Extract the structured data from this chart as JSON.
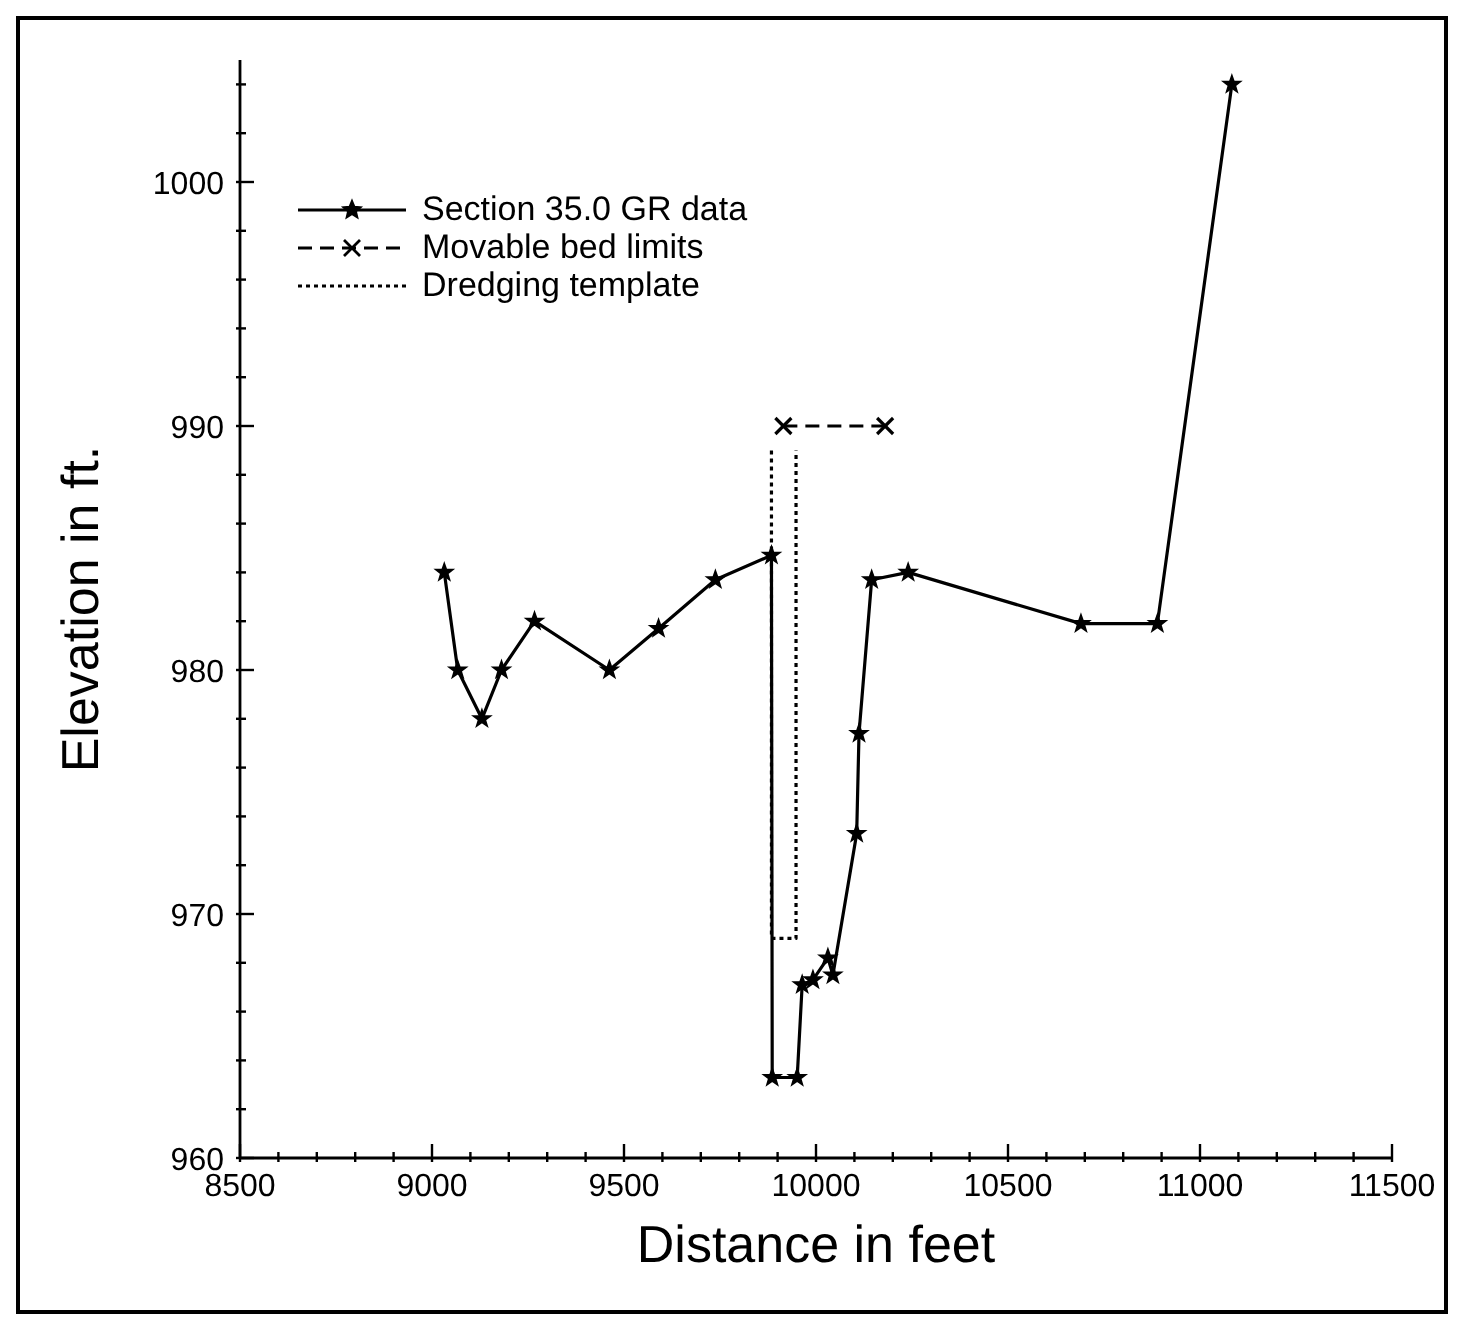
{
  "chart_data": {
    "type": "line",
    "xlabel": "Distance in feet",
    "ylabel": "Elevation in ft.",
    "xlim": [
      8500,
      11500
    ],
    "xticks": [
      8500,
      {
        "value": 8600,
        "label": null
      },
      {
        "value": 8700,
        "label": null
      },
      {
        "value": 8800,
        "label": null
      },
      {
        "value": 8900,
        "label": null
      },
      9000,
      {
        "value": 9100,
        "label": null
      },
      {
        "value": 9200,
        "label": null
      },
      {
        "value": 9300,
        "label": null
      },
      {
        "value": 9400,
        "label": null
      },
      9500,
      {
        "value": 9600,
        "label": null
      },
      {
        "value": 9700,
        "label": null
      },
      {
        "value": 9800,
        "label": null
      },
      {
        "value": 9900,
        "label": null
      },
      10000,
      {
        "value": 10100,
        "label": null
      },
      {
        "value": 10200,
        "label": null
      },
      {
        "value": 10300,
        "label": null
      },
      {
        "value": 10400,
        "label": null
      },
      10500,
      {
        "value": 10600,
        "label": null
      },
      {
        "value": 10700,
        "label": null
      },
      {
        "value": 10800,
        "label": null
      },
      {
        "value": 10900,
        "label": null
      },
      11000,
      {
        "value": 11100,
        "label": null
      },
      {
        "value": 11200,
        "label": null
      },
      {
        "value": 11300,
        "label": null
      },
      {
        "value": 11400,
        "label": null
      },
      11500
    ],
    "ylim": [
      960,
      1005
    ],
    "yticks": [
      960,
      {
        "value": 962,
        "label": null
      },
      {
        "value": 964,
        "label": null
      },
      {
        "value": 966,
        "label": null
      },
      {
        "value": 968,
        "label": null
      },
      970,
      {
        "value": 972,
        "label": null
      },
      {
        "value": 974,
        "label": null
      },
      {
        "value": 976,
        "label": null
      },
      {
        "value": 978,
        "label": null
      },
      980,
      {
        "value": 982,
        "label": null
      },
      {
        "value": 984,
        "label": null
      },
      {
        "value": 986,
        "label": null
      },
      {
        "value": 988,
        "label": null
      },
      990,
      {
        "value": 992,
        "label": null
      },
      {
        "value": 994,
        "label": null
      },
      {
        "value": 996,
        "label": null
      },
      {
        "value": 998,
        "label": null
      },
      1000,
      {
        "value": 1002,
        "label": null
      },
      {
        "value": 1004,
        "label": null
      }
    ],
    "legend": "top left",
    "series": [
      {
        "name": "Section 35.0 GR data",
        "color": "#000000",
        "marker": "star",
        "line_style": "solid",
        "x": [
          9032,
          9067,
          9130,
          9181,
          9267,
          9462,
          9590,
          9738,
          9884,
          9886,
          9951,
          9964,
          9992,
          10031,
          10044,
          10106,
          10112,
          10145,
          10240,
          10690,
          10889,
          11083
        ],
        "values": [
          984,
          980,
          978,
          980,
          982,
          980,
          981.7,
          983.7,
          984.7,
          963.3,
          963.3,
          967.1,
          967.3,
          968.2,
          967.5,
          973.3,
          977.4,
          983.7,
          984,
          981.9,
          981.9,
          1004
        ]
      },
      {
        "name": "Movable bed limits",
        "color": "#000000",
        "marker": "cross",
        "line_style": "dashed",
        "x": [
          9915,
          10180
        ],
        "values": [
          990,
          990
        ]
      },
      {
        "name": "Dredging template",
        "color": "#000000",
        "marker": "none",
        "line_style": "dotted",
        "x": [
          9884,
          9884,
          9948,
          9948
        ],
        "values": [
          989,
          969,
          969,
          989
        ]
      }
    ]
  }
}
